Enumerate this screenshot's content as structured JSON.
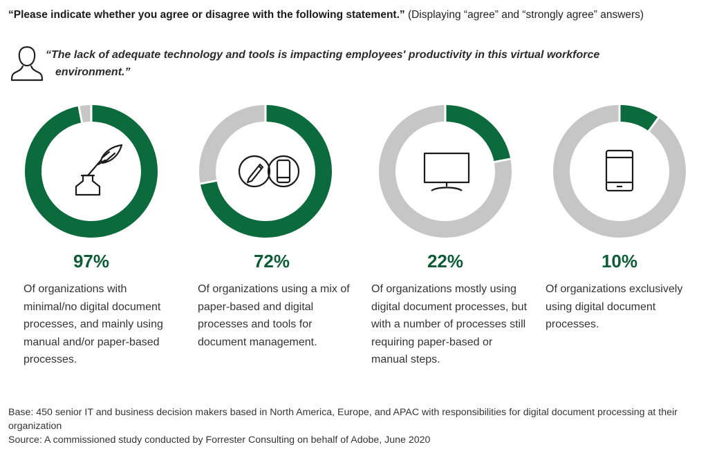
{
  "header": {
    "bold": "“Please indicate whether you agree or disagree with the following statement.”",
    "normal": " (Displaying “agree” and “strongly agree” answers)"
  },
  "quote": {
    "line1": "“The lack of adequate technology and tools is impacting employees' productivity in this virtual workforce",
    "line2": "environment.”"
  },
  "chart_data": {
    "type": "pie",
    "style": "donut",
    "colors": {
      "agree": "#0b6b3d",
      "remainder": "#c6c6c6",
      "label": "#0d5c37"
    },
    "categories": [
      "Of organizations with minimal/no digital document processes, and mainly using manual and/or paper-based processes.",
      "Of organizations using a mix of paper-based and digital processes and tools for document management.",
      "Of organizations mostly using digital document processes, but with a number of processes still requiring paper-based or manual steps.",
      "Of organizations exclusively using digital document processes."
    ],
    "values": [
      97,
      72,
      22,
      10
    ],
    "value_labels": [
      "97%",
      "72%",
      "22%",
      "10%"
    ],
    "icons": [
      "quill-inkwell-icon",
      "pencil-and-phone-icon",
      "monitor-icon",
      "tablet-icon"
    ]
  },
  "footer": {
    "base": "Base: 450 senior IT and business decision makers based in North America, Europe, and APAC with responsibilities for digital document processing at their organization",
    "source": "Source: A commissioned study conducted by Forrester Consulting on behalf of Adobe, June 2020"
  }
}
